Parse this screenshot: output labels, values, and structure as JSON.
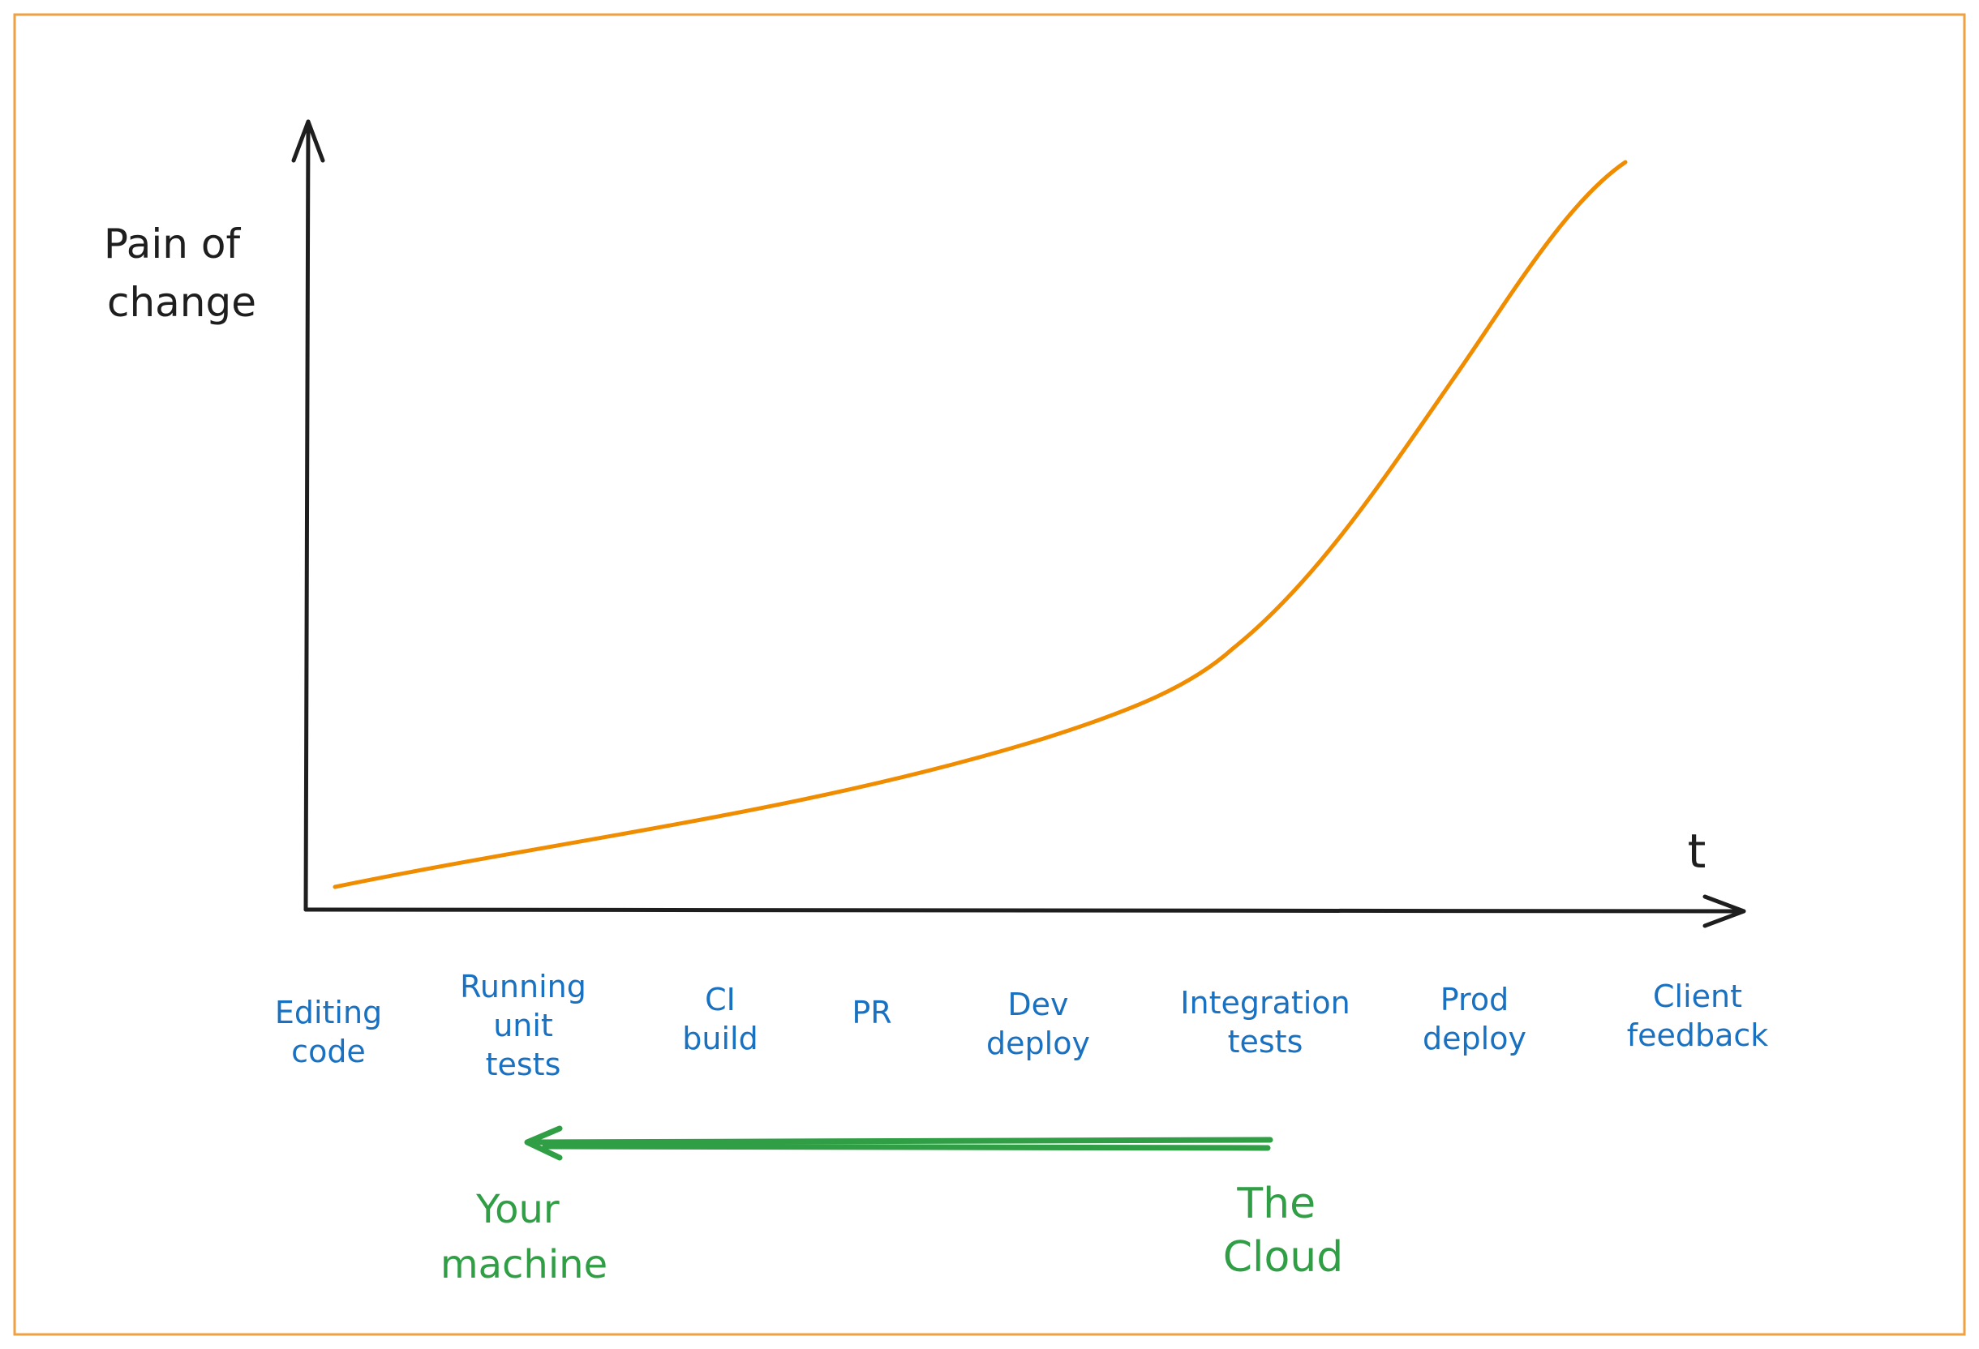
{
  "colors": {
    "frame": "#f0a040",
    "axis": "#1e1e1e",
    "curve": "#f08c00",
    "stage_text": "#1971c2",
    "environment": "#2f9e44"
  },
  "axes": {
    "y_label_lines": [
      "Pain of",
      "change"
    ],
    "x_label": "t"
  },
  "stages": [
    {
      "lines": [
        "Editing",
        "code"
      ]
    },
    {
      "lines": [
        "Running",
        "unit",
        "tests"
      ]
    },
    {
      "lines": [
        "CI",
        "build"
      ]
    },
    {
      "lines": [
        "PR"
      ]
    },
    {
      "lines": [
        "Dev",
        "deploy"
      ]
    },
    {
      "lines": [
        "Integration",
        "tests"
      ]
    },
    {
      "lines": [
        "Prod",
        "deploy"
      ]
    },
    {
      "lines": [
        "Client",
        "feedback"
      ]
    }
  ],
  "shift": {
    "from_lines": [
      "The",
      "Cloud"
    ],
    "to_lines": [
      "Your",
      "machine"
    ]
  }
}
